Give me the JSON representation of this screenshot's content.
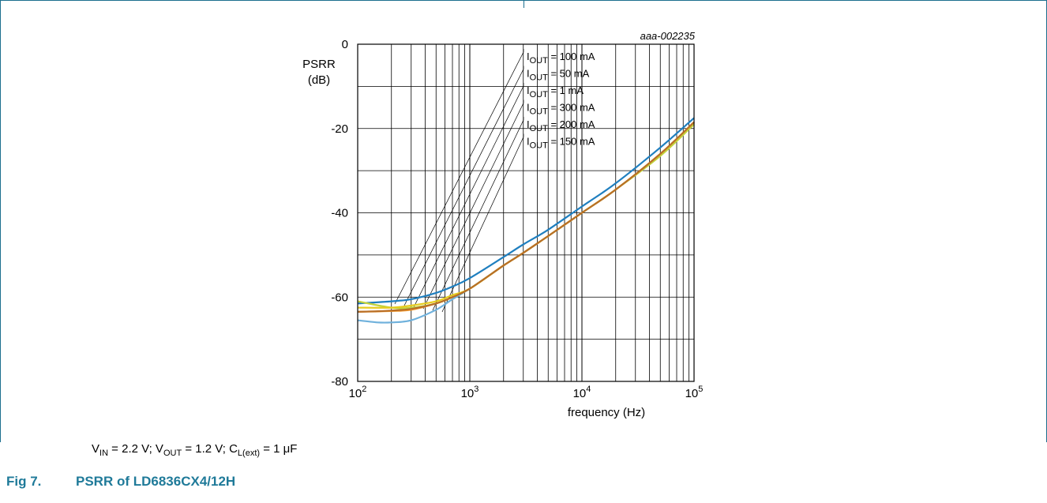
{
  "figure_id": "aaa-002235",
  "conditions": {
    "vin_prefix": "V",
    "vin_sub": "IN",
    "vin_value": " = 2.2 V; ",
    "vout_prefix": "V",
    "vout_sub": "OUT",
    "vout_value": " = 1.2 V; ",
    "cl_prefix": "C",
    "cl_sub": "L(ext)",
    "cl_value": " = 1 μF"
  },
  "caption": {
    "number": "Fig 7.",
    "title": "PSRR of LD6836CX4/12H"
  },
  "chart_data": {
    "type": "line",
    "x_scale": "log",
    "xlim": [
      100,
      100000
    ],
    "ylim": [
      -80,
      0
    ],
    "grid": true,
    "xlabel": "frequency (Hz)",
    "ylabel_lines": [
      "PSRR",
      "(dB)"
    ],
    "x_tick_labels": [
      {
        "base": "10",
        "exp": "2",
        "value": 100
      },
      {
        "base": "10",
        "exp": "3",
        "value": 1000
      },
      {
        "base": "10",
        "exp": "4",
        "value": 10000
      },
      {
        "base": "10",
        "exp": "5",
        "value": 100000
      }
    ],
    "y_ticks": [
      0,
      -20,
      -40,
      -60,
      -80
    ],
    "y_tick_labels": [
      "0",
      "-20",
      "-40",
      "-60",
      "-80"
    ],
    "legend_labels": [
      {
        "prefix": "I",
        "sub": "OUT",
        "value": " = 100 mA"
      },
      {
        "prefix": "I",
        "sub": "OUT",
        "value": " = 50 mA"
      },
      {
        "prefix": "I",
        "sub": "OUT",
        "value": " = 1 mA"
      },
      {
        "prefix": "I",
        "sub": "OUT",
        "value": " = 300 mA"
      },
      {
        "prefix": "I",
        "sub": "OUT",
        "value": " = 200 mA"
      },
      {
        "prefix": "I",
        "sub": "OUT",
        "value": " = 150 mA"
      }
    ],
    "legend_placement": "top-center",
    "series": [
      {
        "color": "#1f7fbf",
        "x": [
          100,
          200,
          300,
          500,
          700,
          1000,
          2000,
          3000,
          5000,
          10000,
          20000,
          50000,
          100000
        ],
        "y": [
          -61.5,
          -61,
          -60.5,
          -59,
          -57.5,
          -55.5,
          -50.5,
          -47.5,
          -44,
          -38.5,
          -33,
          -24.5,
          -17.5
        ]
      },
      {
        "color": "#6fb1dc",
        "x": [
          100,
          150,
          200,
          300,
          500,
          700,
          1000,
          2000,
          3000,
          5000,
          10000,
          20000,
          50000,
          100000
        ],
        "y": [
          -65.5,
          -66,
          -66,
          -65.5,
          -63,
          -60.5,
          -58,
          -52.5,
          -49.5,
          -45.5,
          -40,
          -34.5,
          -26,
          -18.5
        ]
      },
      {
        "color": "#f29a2e",
        "x": [
          100,
          200,
          300,
          500,
          700,
          1000,
          2000,
          3000,
          5000,
          10000,
          20000,
          50000,
          100000
        ],
        "y": [
          -63.5,
          -63.3,
          -63,
          -61.5,
          -60,
          -58,
          -52.5,
          -49.5,
          -45.5,
          -40,
          -34.5,
          -26,
          -18.5
        ]
      },
      {
        "color": "#c2d23c",
        "x": [
          100,
          200,
          300,
          500,
          700,
          1000,
          2000,
          3000,
          5000,
          10000,
          20000,
          50000,
          100000
        ],
        "y": [
          -61,
          -62.5,
          -62.5,
          -61.5,
          -60,
          -58,
          -52.5,
          -49.5,
          -45.5,
          -40,
          -34.5,
          -26.5,
          -19
        ]
      },
      {
        "color": "#e6cc1f",
        "x": [
          100,
          200,
          300,
          500,
          700,
          1000,
          2000,
          3000,
          5000,
          10000,
          20000,
          50000,
          100000
        ],
        "y": [
          -62.5,
          -62.5,
          -62,
          -61,
          -59.5,
          -58,
          -52.5,
          -49.5,
          -45.5,
          -40,
          -34.5,
          -26,
          -18.5
        ]
      },
      {
        "color": "#b86e27",
        "x": [
          100,
          200,
          300,
          500,
          700,
          1000,
          2000,
          3000,
          5000,
          10000,
          20000,
          50000,
          100000
        ],
        "y": [
          -63.5,
          -63.2,
          -62.8,
          -61.5,
          -60,
          -58,
          -52.5,
          -49.5,
          -45.5,
          -40,
          -34.5,
          -26,
          -18.5
        ]
      }
    ]
  }
}
